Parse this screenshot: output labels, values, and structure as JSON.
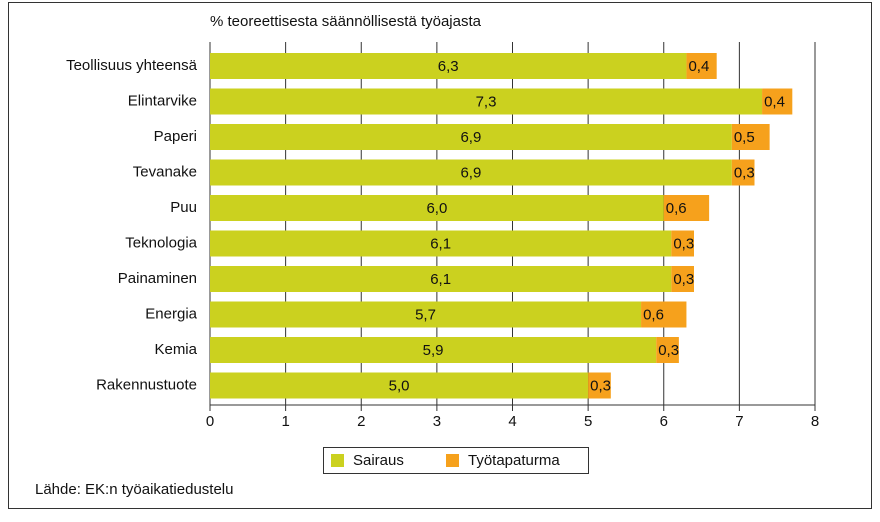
{
  "chart_data": {
    "type": "bar",
    "orientation": "horizontal",
    "stacked": true,
    "subtitle": "% teoreettisesta säännöllisestä työajasta",
    "categories": [
      "Teollisuus yhteensä",
      "Elintarvike",
      "Paperi",
      "Tevanake",
      "Puu",
      "Teknologia",
      "Painaminen",
      "Energia",
      "Kemia",
      "Rakennustuote"
    ],
    "series": [
      {
        "name": "Sairaus",
        "color": "#cbd11f",
        "values": [
          6.3,
          7.3,
          6.9,
          6.9,
          6.0,
          6.1,
          6.1,
          5.7,
          5.9,
          5.0
        ],
        "value_labels": [
          "6,3",
          "7,3",
          "6,9",
          "6,9",
          "6,0",
          "6,1",
          "6,1",
          "5,7",
          "5,9",
          "5,0"
        ]
      },
      {
        "name": "Työtapaturma",
        "color": "#f6a11c",
        "values": [
          0.4,
          0.4,
          0.5,
          0.3,
          0.6,
          0.3,
          0.3,
          0.6,
          0.3,
          0.3
        ],
        "value_labels": [
          "0,4",
          "0,4",
          "0,5",
          "0,3",
          "0,6",
          "0,3",
          "0,3",
          "0,6",
          "0,3",
          "0,3"
        ]
      }
    ],
    "xlim": [
      0,
      8
    ],
    "xticks": [
      0,
      1,
      2,
      3,
      4,
      5,
      6,
      7,
      8
    ],
    "grid": true,
    "legend": "bottom",
    "source": "Lähde: EK:n työaikatiedustelu"
  }
}
